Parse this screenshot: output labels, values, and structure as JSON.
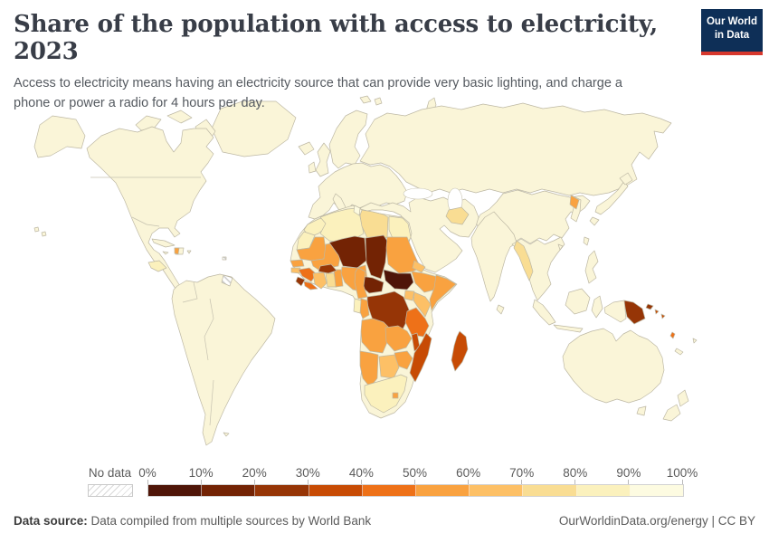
{
  "header": {
    "title": "Share of the population with access to electricity, 2023",
    "subtitle": "Access to electricity means having an electricity source that can provide very basic lighting, and charge a phone or power a radio for 4 hours per day.",
    "logo_line1": "Our World",
    "logo_line2": "in Data",
    "logo_bg": "#0e2f57",
    "logo_accent": "#d7382d"
  },
  "legend": {
    "no_data_label": "No data",
    "tick_labels": [
      "0%",
      "10%",
      "20%",
      "30%",
      "40%",
      "50%",
      "60%",
      "70%",
      "80%",
      "90%",
      "100%"
    ],
    "bin_colors": [
      "#4f1508",
      "#732304",
      "#963506",
      "#c74b04",
      "#ee7118",
      "#f9a240",
      "#fdc066",
      "#f9dd93",
      "#fbf1bd",
      "#fdfbe1"
    ]
  },
  "map": {
    "ocean": "#ffffff",
    "land_default": "#faf5d8",
    "border": "#bdb8a4",
    "no_data_fill": "hatch",
    "countries": {
      "morocco": 9,
      "western_sahara": 9,
      "algeria": 9,
      "tunisia": 10,
      "libya": 8,
      "egypt": 9,
      "mauritania": 6,
      "mali": 6,
      "senegal": 6,
      "guinea_bissau": 7,
      "guinea": 5,
      "sierra_leone": 3,
      "liberia": 5,
      "cote_divoire": 7,
      "ghana": 8,
      "togo_benin": 6,
      "burkina_faso": 3,
      "niger": 2,
      "nigeria": 6,
      "chad": 2,
      "sudan": 6,
      "eritrea": 7,
      "ethiopia": 6,
      "somalia": 6,
      "south_sudan": 1,
      "central_african_republic": 2,
      "cameroon": 6,
      "democratic_republic_of_congo": 3,
      "congo": 6,
      "gabon": 9,
      "uganda": 7,
      "kenya": 7,
      "tanzania": 5,
      "angola": 6,
      "zambia": 6,
      "malawi": 4,
      "mozambique": 4,
      "zimbabwe": 6,
      "botswana": 7,
      "namibia": 6,
      "south_africa": 9,
      "lesotho": 6,
      "madagascar": 4,
      "haiti": 6,
      "honduras": 9,
      "french_guiana": "no-data",
      "cape_verde": "no-data",
      "afghanistan": 8,
      "myanmar": 8,
      "north_korea": 6,
      "papua_new_guinea": 3,
      "new_britain": 3,
      "solomon_islands": 4,
      "vanuatu": 5
    }
  },
  "chart_data": {
    "type": "choropleth_map",
    "title": "Share of the population with access to electricity, 2023",
    "unit": "%",
    "bins": [
      "0-10%",
      "10-20%",
      "20-30%",
      "30-40%",
      "40-50%",
      "50-60%",
      "60-70%",
      "70-80%",
      "80-90%",
      "90-100%"
    ],
    "legend_position": "bottom",
    "values_by_country_bin": {
      "south_sudan": "0-10%",
      "chad": "10-20%",
      "niger": "10-20%",
      "central_african_republic": "10-20%",
      "burkina_faso": "20-30%",
      "sierra_leone": "20-30%",
      "democratic_republic_of_congo": "20-30%",
      "papua_new_guinea": "20-30%",
      "mozambique": "30-40%",
      "malawi": "30-40%",
      "madagascar": "30-40%",
      "solomon_islands": "30-40%",
      "guinea": "40-50%",
      "liberia": "40-50%",
      "tanzania": "40-50%",
      "vanuatu": "40-50%",
      "mauritania": "50-60%",
      "mali": "50-60%",
      "senegal": "50-60%",
      "nigeria": "50-60%",
      "sudan": "50-60%",
      "ethiopia": "50-60%",
      "somalia": "50-60%",
      "cameroon": "50-60%",
      "congo": "50-60%",
      "angola": "50-60%",
      "zambia": "50-60%",
      "zimbabwe": "50-60%",
      "namibia": "50-60%",
      "lesotho": "50-60%",
      "haiti": "50-60%",
      "north_korea": "50-60%",
      "togo_benin": "50-60%",
      "guinea_bissau": "60-70%",
      "cote_divoire": "60-70%",
      "uganda": "60-70%",
      "kenya": "60-70%",
      "botswana": "60-70%",
      "eritrea": "60-70%",
      "ghana": "70-80%",
      "libya": "70-80%",
      "afghanistan": "70-80%",
      "myanmar": "70-80%",
      "morocco": "80-90%",
      "western_sahara": "80-90%",
      "algeria": "80-90%",
      "egypt": "80-90%",
      "gabon": "80-90%",
      "south_africa": "80-90%",
      "honduras": "80-90%",
      "tunisia": "90-100%",
      "rest_of_world": "90-100%",
      "french_guiana": "No data",
      "cape_verde": "No data"
    }
  },
  "footer": {
    "source_label": "Data source:",
    "source_text": " Data compiled from multiple sources by World Bank",
    "right_text": "OurWorldinData.org/energy | CC BY"
  }
}
